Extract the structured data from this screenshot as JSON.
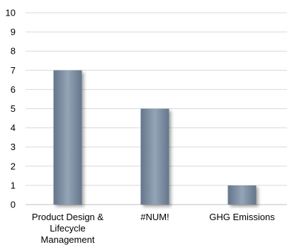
{
  "chart_data": {
    "type": "bar",
    "categories": [
      "Product Design & Lifecycle Management",
      "#NUM!",
      "GHG Emissions"
    ],
    "category_lines": [
      [
        "Product Design &",
        "Lifecycle",
        "Management"
      ],
      [
        "#NUM!"
      ],
      [
        "GHG Emissions"
      ]
    ],
    "values": [
      7,
      5,
      1
    ],
    "ylim": [
      0,
      10
    ],
    "yticks": [
      0,
      1,
      2,
      3,
      4,
      5,
      6,
      7,
      8,
      9,
      10
    ],
    "grid": true,
    "legend": "none",
    "colors": {
      "bar": "#7d8ea3",
      "bar_light": "#95a4b7",
      "bar_dark": "#64768b",
      "grid": "#d9d9d9",
      "axis": "#bfbfbf"
    }
  }
}
